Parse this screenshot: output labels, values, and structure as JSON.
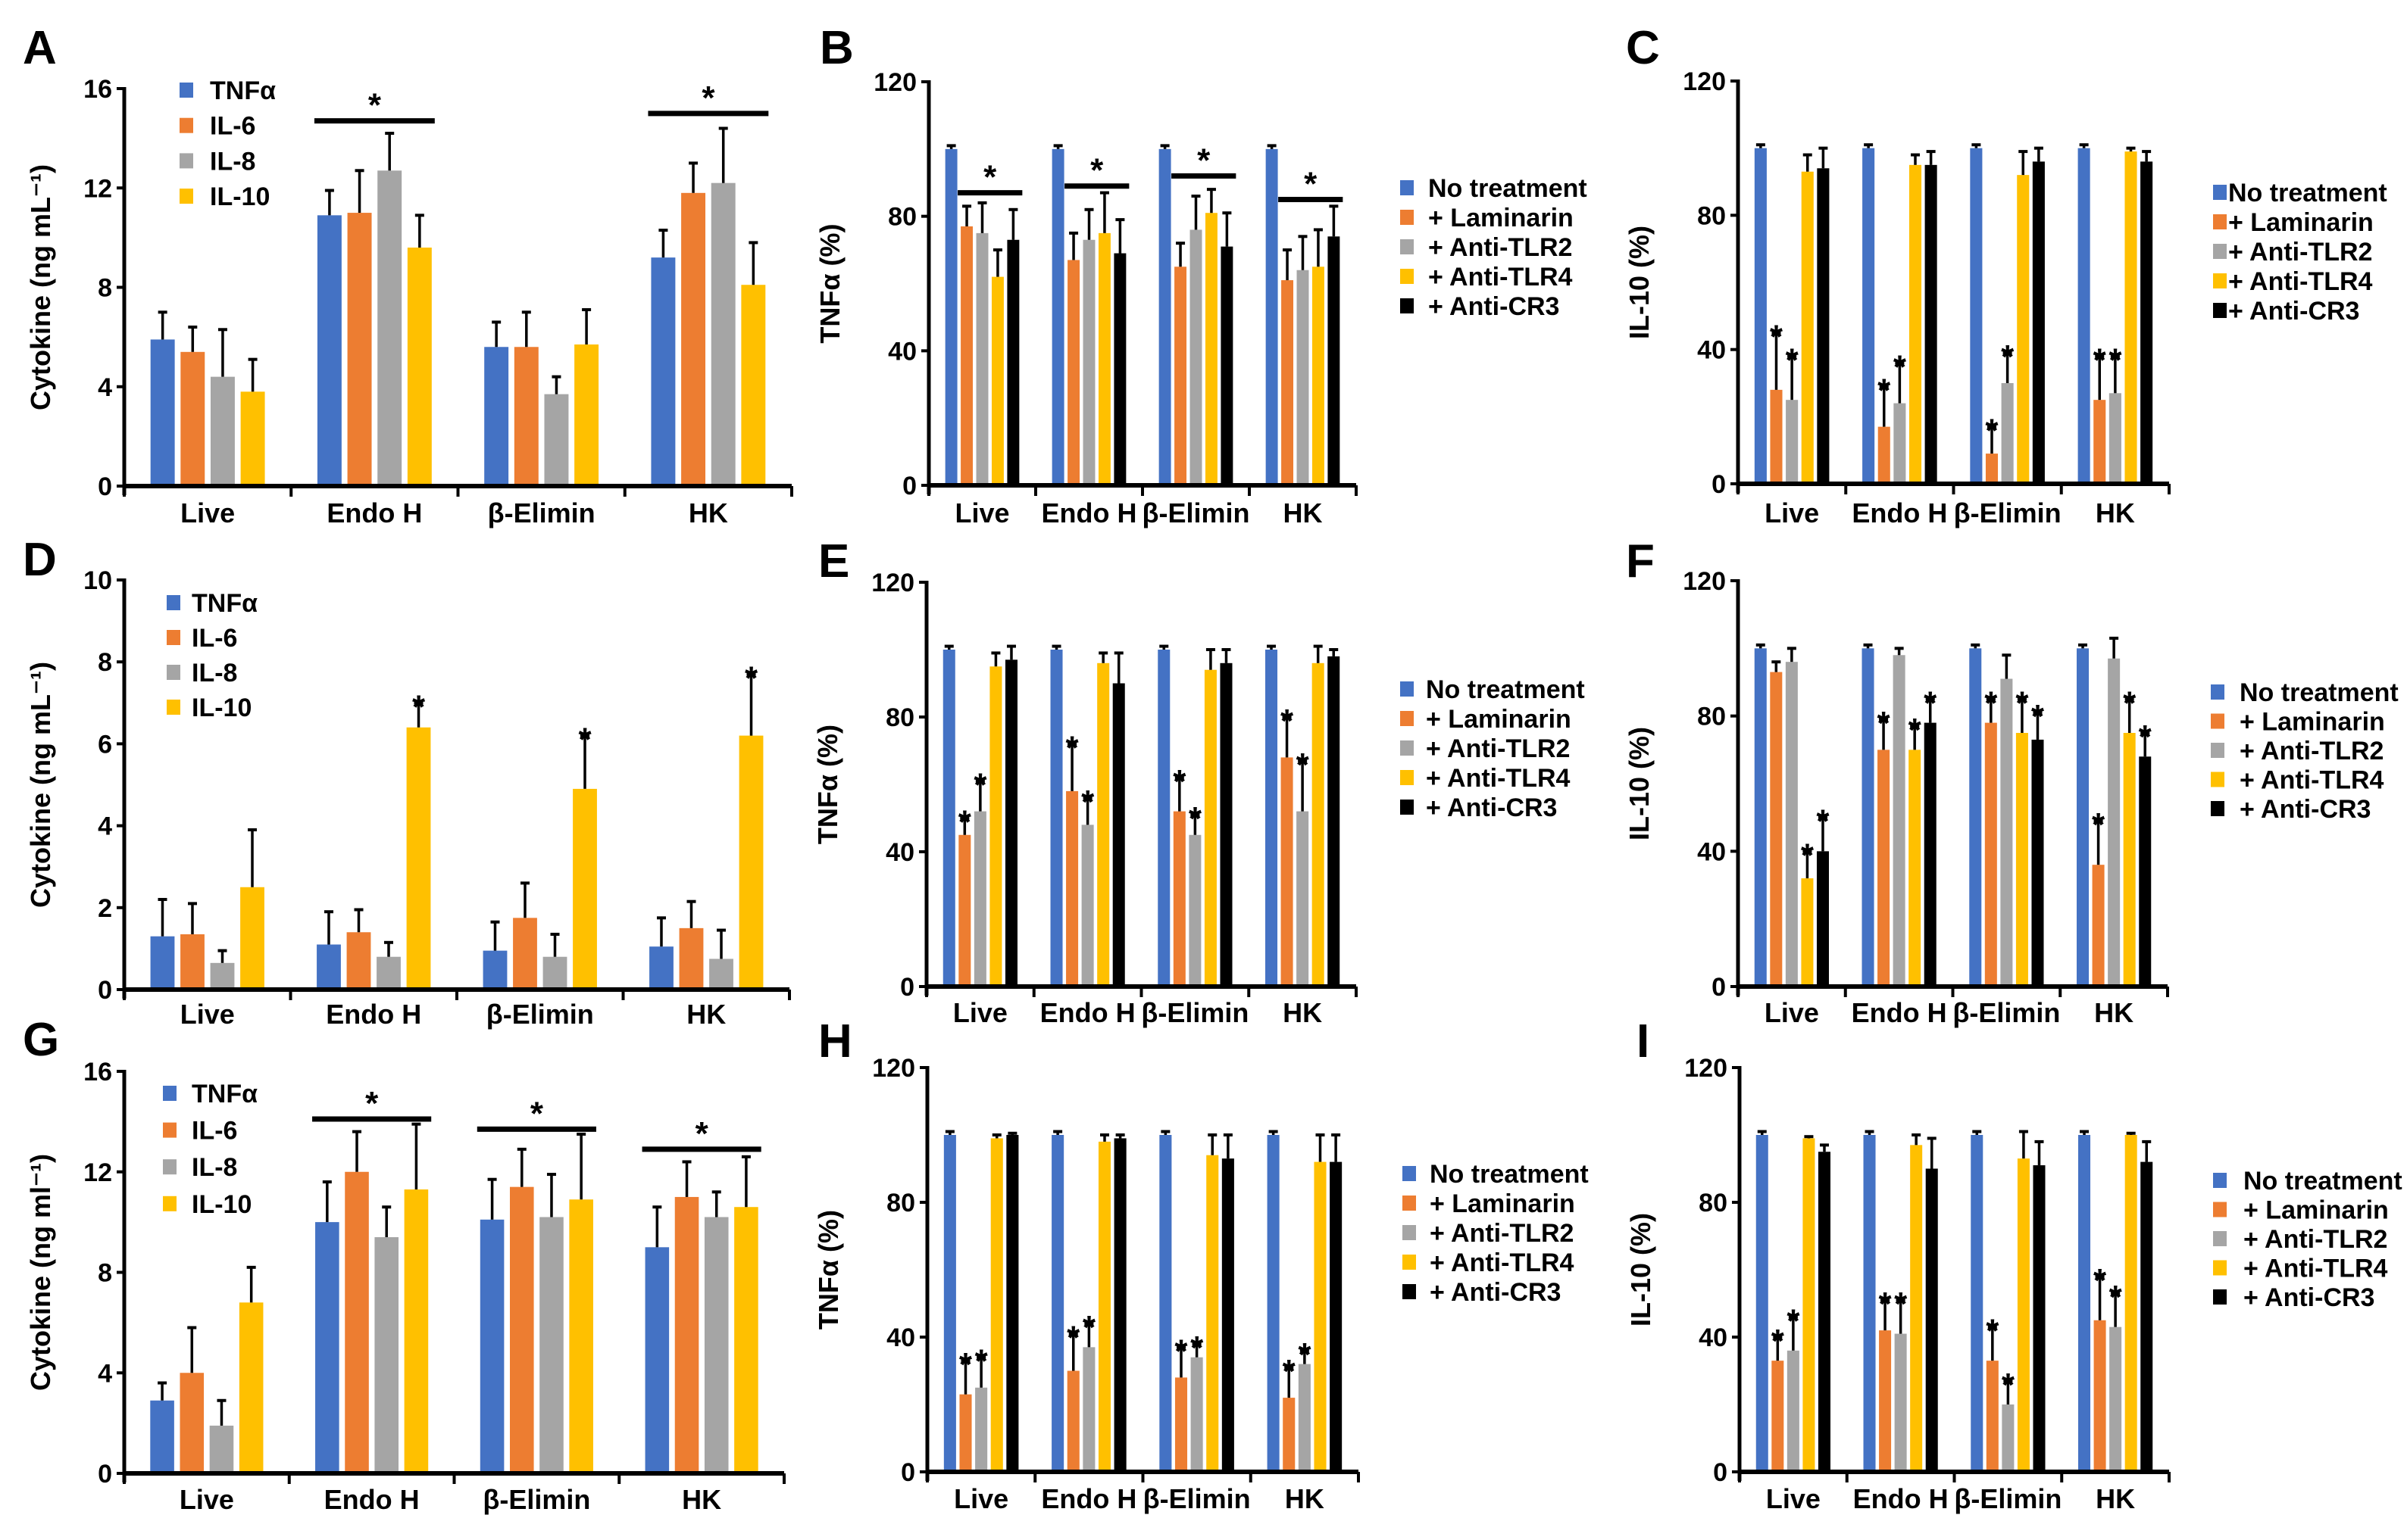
{
  "sig_marker": "*",
  "chart_data": [
    {
      "panel": "A",
      "type": "bar",
      "ylabel": "Cytokine (ng mL⁻¹)",
      "ylim": [
        0,
        16
      ],
      "yticks": [
        0,
        4,
        8,
        12,
        16
      ],
      "legend": "top-left",
      "categories": [
        "Live",
        "Endo H",
        "β-Elimin",
        "HK"
      ],
      "series": [
        {
          "name": "TNFα",
          "color": "#4472C4",
          "values": [
            5.9,
            10.9,
            5.6,
            9.2
          ],
          "errors": [
            1.1,
            1.0,
            1.0,
            1.1
          ]
        },
        {
          "name": "IL-6",
          "color": "#ED7D31",
          "values": [
            5.4,
            11.0,
            5.6,
            11.8
          ],
          "errors": [
            1.0,
            1.7,
            1.4,
            1.2
          ]
        },
        {
          "name": "IL-8",
          "color": "#A5A5A5",
          "values": [
            4.4,
            12.7,
            3.7,
            12.2
          ],
          "errors": [
            1.9,
            1.5,
            0.7,
            2.2
          ]
        },
        {
          "name": "IL-10",
          "color": "#FFC000",
          "values": [
            3.8,
            9.6,
            5.7,
            8.1
          ],
          "errors": [
            1.3,
            1.3,
            1.4,
            1.7
          ]
        }
      ],
      "stars": [],
      "group_sig": [
        {
          "category": 1,
          "level": 14.7
        },
        {
          "category": 3,
          "level": 15.0
        }
      ]
    },
    {
      "panel": "B",
      "type": "bar",
      "ylabel": "TNFα (%)",
      "ylim": [
        0,
        120
      ],
      "yticks": [
        0,
        40,
        80,
        120
      ],
      "legend": "right",
      "categories": [
        "Live",
        "Endo H",
        "β-Elimin",
        "HK"
      ],
      "series": [
        {
          "name": "No treatment",
          "color": "#4472C4",
          "values": [
            100,
            100,
            100,
            100
          ],
          "errors": [
            1,
            1,
            1,
            1
          ]
        },
        {
          "name": "+ Laminarin",
          "color": "#ED7D31",
          "values": [
            77,
            67,
            65,
            61
          ],
          "errors": [
            6,
            8,
            7,
            9
          ]
        },
        {
          "name": "+ Anti-TLR2",
          "color": "#A5A5A5",
          "values": [
            75,
            73,
            76,
            64
          ],
          "errors": [
            9,
            9,
            10,
            10
          ]
        },
        {
          "name": "+ Anti-TLR4",
          "color": "#FFC000",
          "values": [
            62,
            75,
            81,
            65
          ],
          "errors": [
            8,
            12,
            7,
            11
          ]
        },
        {
          "name": "+ Anti-CR3",
          "color": "#000000",
          "values": [
            73,
            69,
            71,
            74
          ],
          "errors": [
            9,
            10,
            10,
            9
          ]
        }
      ],
      "stars": [],
      "group_sig": [
        {
          "category": 0,
          "level": 87
        },
        {
          "category": 1,
          "level": 89
        },
        {
          "category": 2,
          "level": 92
        },
        {
          "category": 3,
          "level": 85
        }
      ]
    },
    {
      "panel": "C",
      "type": "bar",
      "ylabel": "IL-10 (%)",
      "ylim": [
        0,
        120
      ],
      "yticks": [
        0,
        40,
        80,
        120
      ],
      "legend": "right",
      "categories": [
        "Live",
        "Endo H",
        "β-Elimin",
        "HK"
      ],
      "series": [
        {
          "name": "No treatment",
          "color": "#4472C4",
          "values": [
            100,
            100,
            100,
            100
          ],
          "errors": [
            1,
            1,
            1,
            1
          ]
        },
        {
          "name": "+ Laminarin",
          "color": "#ED7D31",
          "values": [
            28,
            17,
            9,
            25
          ],
          "errors": [
            17,
            12,
            8,
            13
          ]
        },
        {
          "name": "+ Anti-TLR2",
          "color": "#A5A5A5",
          "values": [
            25,
            24,
            30,
            27
          ],
          "errors": [
            13,
            12,
            9,
            11
          ]
        },
        {
          "name": "+ Anti-TLR4",
          "color": "#FFC000",
          "values": [
            93,
            95,
            92,
            99
          ],
          "errors": [
            5,
            3,
            7,
            1
          ]
        },
        {
          "name": "+ Anti-CR3",
          "color": "#000000",
          "values": [
            94,
            95,
            96,
            96
          ],
          "errors": [
            6,
            4,
            4,
            3
          ]
        }
      ],
      "stars": [
        [
          0,
          1
        ],
        [
          0,
          2
        ],
        [
          1,
          1
        ],
        [
          1,
          2
        ],
        [
          2,
          1
        ],
        [
          2,
          2
        ],
        [
          3,
          1
        ],
        [
          3,
          2
        ]
      ],
      "group_sig": []
    },
    {
      "panel": "D",
      "type": "bar",
      "ylabel": "Cytokine (ng mL⁻¹)",
      "ylim": [
        0,
        10
      ],
      "yticks": [
        0,
        2,
        4,
        6,
        8,
        10
      ],
      "legend": "top-left",
      "categories": [
        "Live",
        "Endo H",
        "β-Elimin",
        "HK"
      ],
      "series": [
        {
          "name": "TNFα",
          "color": "#4472C4",
          "values": [
            1.3,
            1.1,
            0.95,
            1.05
          ],
          "errors": [
            0.9,
            0.8,
            0.7,
            0.7
          ]
        },
        {
          "name": "IL-6",
          "color": "#ED7D31",
          "values": [
            1.35,
            1.4,
            1.75,
            1.5
          ],
          "errors": [
            0.75,
            0.55,
            0.85,
            0.65
          ]
        },
        {
          "name": "IL-8",
          "color": "#A5A5A5",
          "values": [
            0.65,
            0.8,
            0.8,
            0.75
          ],
          "errors": [
            0.3,
            0.35,
            0.55,
            0.7
          ]
        },
        {
          "name": "IL-10",
          "color": "#FFC000",
          "values": [
            2.5,
            6.4,
            4.9,
            6.2
          ],
          "errors": [
            1.4,
            0.6,
            1.3,
            1.5
          ]
        }
      ],
      "stars": [
        [
          1,
          3
        ],
        [
          2,
          3
        ],
        [
          3,
          3
        ]
      ],
      "group_sig": []
    },
    {
      "panel": "E",
      "type": "bar",
      "ylabel": "TNFα (%)",
      "ylim": [
        0,
        120
      ],
      "yticks": [
        0,
        40,
        80,
        120
      ],
      "legend": "right",
      "categories": [
        "Live",
        "Endo H",
        "β-Elimin",
        "HK"
      ],
      "series": [
        {
          "name": "No treatment",
          "color": "#4472C4",
          "values": [
            100,
            100,
            100,
            100
          ],
          "errors": [
            1,
            1,
            1,
            1
          ]
        },
        {
          "name": "+ Laminarin",
          "color": "#ED7D31",
          "values": [
            45,
            58,
            52,
            68
          ],
          "errors": [
            5,
            14,
            10,
            12
          ]
        },
        {
          "name": "+ Anti-TLR2",
          "color": "#A5A5A5",
          "values": [
            52,
            48,
            45,
            52
          ],
          "errors": [
            9,
            8,
            6,
            15
          ]
        },
        {
          "name": "+ Anti-TLR4",
          "color": "#FFC000",
          "values": [
            95,
            96,
            94,
            96
          ],
          "errors": [
            4,
            3,
            6,
            5
          ]
        },
        {
          "name": "+ Anti-CR3",
          "color": "#000000",
          "values": [
            97,
            90,
            96,
            98
          ],
          "errors": [
            4,
            9,
            4,
            2
          ]
        }
      ],
      "stars": [
        [
          0,
          1
        ],
        [
          0,
          2
        ],
        [
          1,
          1
        ],
        [
          1,
          2
        ],
        [
          2,
          1
        ],
        [
          2,
          2
        ],
        [
          3,
          1
        ],
        [
          3,
          2
        ]
      ],
      "group_sig": []
    },
    {
      "panel": "F",
      "type": "bar",
      "ylabel": "IL-10 (%)",
      "ylim": [
        0,
        120
      ],
      "yticks": [
        0,
        40,
        80,
        120
      ],
      "legend": "right",
      "categories": [
        "Live",
        "Endo H",
        "β-Elimin",
        "HK"
      ],
      "series": [
        {
          "name": "No treatment",
          "color": "#4472C4",
          "values": [
            100,
            100,
            100,
            100
          ],
          "errors": [
            1,
            1,
            1,
            1
          ]
        },
        {
          "name": "+ Laminarin",
          "color": "#ED7D31",
          "values": [
            93,
            70,
            78,
            36
          ],
          "errors": [
            3,
            9,
            7,
            13
          ]
        },
        {
          "name": "+ Anti-TLR2",
          "color": "#A5A5A5",
          "values": [
            96,
            98,
            91,
            97
          ],
          "errors": [
            4,
            2,
            7,
            6
          ]
        },
        {
          "name": "+ Anti-TLR4",
          "color": "#FFC000",
          "values": [
            32,
            70,
            75,
            75
          ],
          "errors": [
            8,
            7,
            10,
            10
          ]
        },
        {
          "name": "+ Anti-CR3",
          "color": "#000000",
          "values": [
            40,
            78,
            73,
            68
          ],
          "errors": [
            10,
            7,
            8,
            7
          ]
        }
      ],
      "stars": [
        [
          0,
          3
        ],
        [
          0,
          4
        ],
        [
          1,
          1
        ],
        [
          1,
          3
        ],
        [
          1,
          4
        ],
        [
          2,
          1
        ],
        [
          2,
          3
        ],
        [
          2,
          4
        ],
        [
          3,
          1
        ],
        [
          3,
          3
        ],
        [
          3,
          4
        ]
      ],
      "group_sig": []
    },
    {
      "panel": "G",
      "type": "bar",
      "ylabel": "Cytokine (ng ml⁻¹)",
      "ylim": [
        0,
        16
      ],
      "yticks": [
        0,
        4,
        8,
        12,
        16
      ],
      "legend": "top-left",
      "categories": [
        "Live",
        "Endo H",
        "β-Elimin",
        "HK"
      ],
      "series": [
        {
          "name": "TNFα",
          "color": "#4472C4",
          "values": [
            2.9,
            10.0,
            10.1,
            9.0
          ],
          "errors": [
            0.7,
            1.6,
            1.6,
            1.6
          ]
        },
        {
          "name": "IL-6",
          "color": "#ED7D31",
          "values": [
            4.0,
            12.0,
            11.4,
            11.0
          ],
          "errors": [
            1.8,
            1.6,
            1.5,
            1.4
          ]
        },
        {
          "name": "IL-8",
          "color": "#A5A5A5",
          "values": [
            1.9,
            9.4,
            10.2,
            10.2
          ],
          "errors": [
            1.0,
            1.2,
            1.7,
            1.0
          ]
        },
        {
          "name": "IL-10",
          "color": "#FFC000",
          "values": [
            6.8,
            11.3,
            10.9,
            10.6
          ],
          "errors": [
            1.4,
            2.6,
            2.6,
            2.0
          ]
        }
      ],
      "stars": [],
      "group_sig": [
        {
          "category": 1,
          "level": 14.1
        },
        {
          "category": 2,
          "level": 13.7
        },
        {
          "category": 3,
          "level": 12.9
        }
      ]
    },
    {
      "panel": "H",
      "type": "bar",
      "ylabel": "TNFα (%)",
      "ylim": [
        0,
        120
      ],
      "yticks": [
        0,
        40,
        80,
        120
      ],
      "legend": "right",
      "categories": [
        "Live",
        "Endo H",
        "β-Elimin",
        "HK"
      ],
      "series": [
        {
          "name": "No treatment",
          "color": "#4472C4",
          "values": [
            100,
            100,
            100,
            100
          ],
          "errors": [
            1,
            1,
            1,
            1
          ]
        },
        {
          "name": "+ Laminarin",
          "color": "#ED7D31",
          "values": [
            23,
            30,
            28,
            22
          ],
          "errors": [
            10,
            11,
            9,
            9
          ]
        },
        {
          "name": "+ Anti-TLR2",
          "color": "#A5A5A5",
          "values": [
            25,
            37,
            34,
            32
          ],
          "errors": [
            9,
            7,
            4,
            4
          ]
        },
        {
          "name": "+ Anti-TLR4",
          "color": "#FFC000",
          "values": [
            99,
            98,
            94,
            92
          ],
          "errors": [
            1,
            2,
            6,
            8
          ]
        },
        {
          "name": "+ Anti-CR3",
          "color": "#000000",
          "values": [
            100,
            99,
            93,
            92
          ],
          "errors": [
            0.5,
            1,
            7,
            8
          ]
        }
      ],
      "stars": [
        [
          0,
          1
        ],
        [
          0,
          2
        ],
        [
          1,
          1
        ],
        [
          1,
          2
        ],
        [
          2,
          1
        ],
        [
          2,
          2
        ],
        [
          3,
          1
        ],
        [
          3,
          2
        ]
      ],
      "group_sig": []
    },
    {
      "panel": "I",
      "type": "bar",
      "ylabel": "IL-10 (%)",
      "ylim": [
        0,
        120
      ],
      "yticks": [
        0,
        40,
        80,
        120
      ],
      "legend": "right",
      "categories": [
        "Live",
        "Endo H",
        "β-Elimin",
        "HK"
      ],
      "series": [
        {
          "name": "No treatment",
          "color": "#4472C4",
          "values": [
            100,
            100,
            100,
            100
          ],
          "errors": [
            1,
            1,
            1,
            1
          ]
        },
        {
          "name": "+ Laminarin",
          "color": "#ED7D31",
          "values": [
            33,
            42,
            33,
            45
          ],
          "errors": [
            7,
            9,
            10,
            13
          ]
        },
        {
          "name": "+ Anti-TLR2",
          "color": "#A5A5A5",
          "values": [
            36,
            41,
            20,
            43
          ],
          "errors": [
            10,
            10,
            7,
            10
          ]
        },
        {
          "name": "+ Anti-TLR4",
          "color": "#FFC000",
          "values": [
            99,
            97,
            93,
            100
          ],
          "errors": [
            0.5,
            3,
            8,
            0.5
          ]
        },
        {
          "name": "+ Anti-CR3",
          "color": "#000000",
          "values": [
            95,
            90,
            91,
            92
          ],
          "errors": [
            2,
            9,
            7,
            6
          ]
        }
      ],
      "stars": [
        [
          0,
          1
        ],
        [
          0,
          2
        ],
        [
          1,
          1
        ],
        [
          1,
          2
        ],
        [
          2,
          1
        ],
        [
          2,
          2
        ],
        [
          3,
          1
        ],
        [
          3,
          2
        ]
      ],
      "group_sig": []
    }
  ]
}
